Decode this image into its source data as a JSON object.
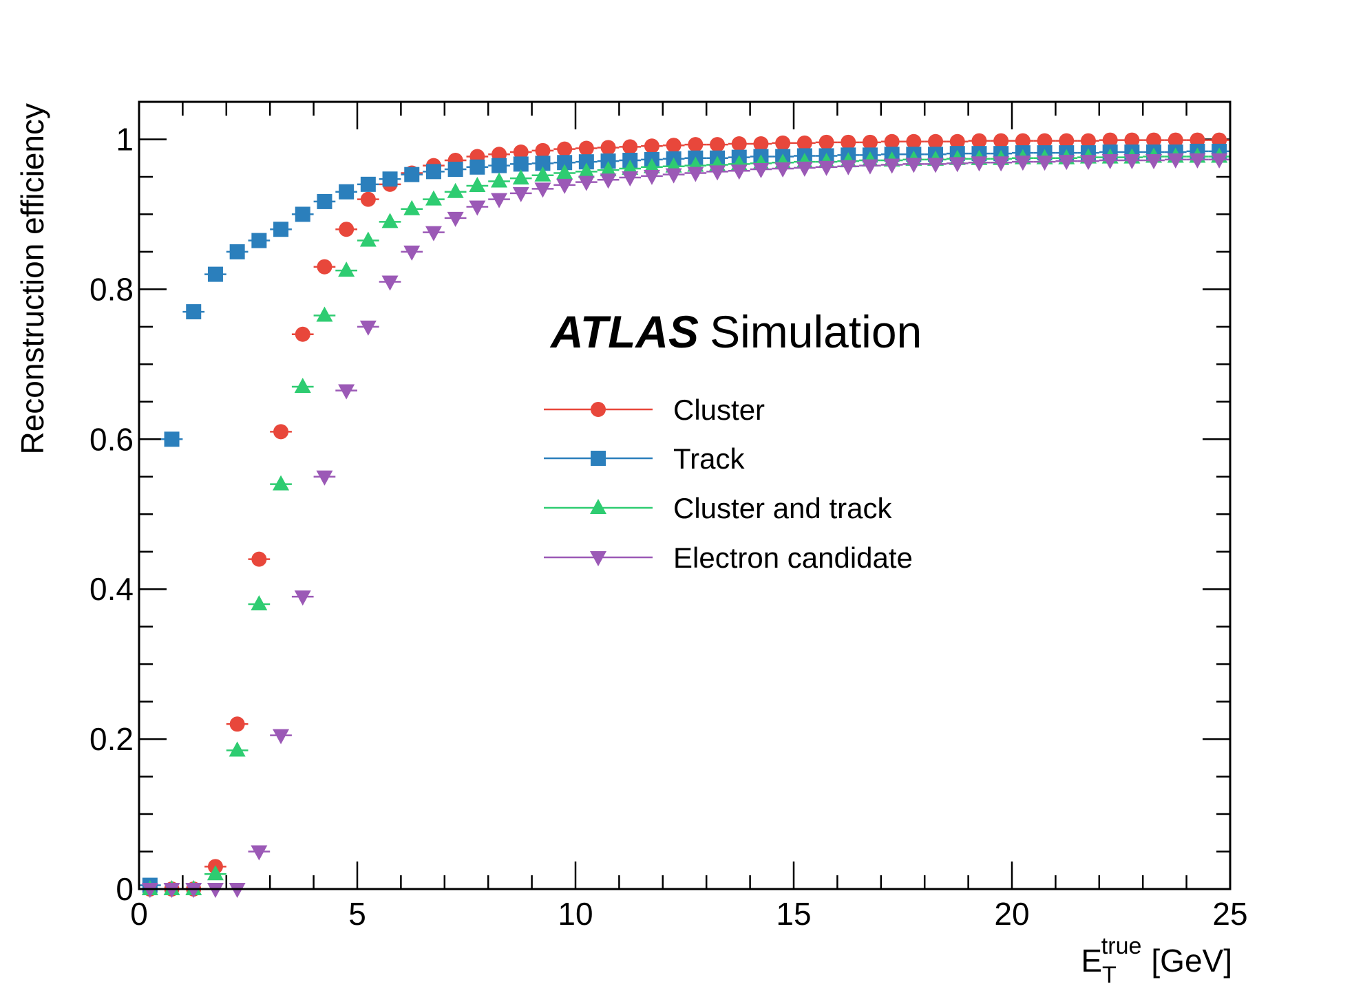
{
  "chart_data": {
    "type": "scatter",
    "xlabel": {
      "base": "E",
      "sub": "T",
      "sup": "true",
      "unit": "[GeV]"
    },
    "ylabel": "Reconstruction efficiency",
    "xlim": [
      0,
      25
    ],
    "ylim": [
      0,
      1.05
    ],
    "x_ticks": [
      0,
      5,
      10,
      15,
      20,
      25
    ],
    "y_ticks": [
      0,
      0.2,
      0.4,
      0.6,
      0.8,
      1
    ],
    "x_tick_labels": [
      "0",
      "5",
      "10",
      "15",
      "20",
      "25"
    ],
    "y_tick_labels": [
      "0",
      "0.2",
      "0.4",
      "0.6",
      "0.8",
      "1"
    ],
    "grid": false,
    "legend_position": "center",
    "annotation": {
      "bold": "ATLAS",
      "text": "Simulation"
    },
    "x": [
      0.25,
      0.75,
      1.25,
      1.75,
      2.25,
      2.75,
      3.25,
      3.75,
      4.25,
      4.75,
      5.25,
      5.75,
      6.25,
      6.75,
      7.25,
      7.75,
      8.25,
      8.75,
      9.25,
      9.75,
      10.25,
      10.75,
      11.25,
      11.75,
      12.25,
      12.75,
      13.25,
      13.75,
      14.25,
      14.75,
      15.25,
      15.75,
      16.25,
      16.75,
      17.25,
      17.75,
      18.25,
      18.75,
      19.25,
      19.75,
      20.25,
      20.75,
      21.25,
      21.75,
      22.25,
      22.75,
      23.25,
      23.75,
      24.25,
      24.75
    ],
    "series": [
      {
        "name": "Cluster",
        "color": "#e8473b",
        "marker": "circle",
        "values": [
          0.0,
          0.0,
          0.0,
          0.03,
          0.22,
          0.44,
          0.61,
          0.74,
          0.83,
          0.88,
          0.92,
          0.94,
          0.955,
          0.965,
          0.972,
          0.977,
          0.98,
          0.983,
          0.985,
          0.987,
          0.988,
          0.989,
          0.99,
          0.991,
          0.992,
          0.993,
          0.993,
          0.994,
          0.994,
          0.995,
          0.995,
          0.996,
          0.996,
          0.996,
          0.997,
          0.997,
          0.997,
          0.997,
          0.998,
          0.998,
          0.998,
          0.998,
          0.998,
          0.998,
          0.999,
          0.999,
          0.999,
          0.999,
          0.999,
          0.999
        ]
      },
      {
        "name": "Track",
        "color": "#2b7fbc",
        "marker": "square",
        "values": [
          0.005,
          0.6,
          0.77,
          0.82,
          0.85,
          0.865,
          0.88,
          0.9,
          0.917,
          0.93,
          0.94,
          0.947,
          0.953,
          0.957,
          0.96,
          0.963,
          0.965,
          0.967,
          0.968,
          0.969,
          0.97,
          0.971,
          0.972,
          0.973,
          0.974,
          0.975,
          0.975,
          0.976,
          0.977,
          0.977,
          0.978,
          0.978,
          0.979,
          0.979,
          0.98,
          0.98,
          0.98,
          0.981,
          0.981,
          0.981,
          0.982,
          0.982,
          0.982,
          0.982,
          0.983,
          0.983,
          0.983,
          0.983,
          0.984,
          0.984
        ]
      },
      {
        "name": "Cluster and track",
        "color": "#2ecc71",
        "marker": "triangle-up",
        "values": [
          0.0,
          0.0,
          0.0,
          0.02,
          0.185,
          0.38,
          0.54,
          0.67,
          0.765,
          0.825,
          0.865,
          0.89,
          0.907,
          0.92,
          0.93,
          0.938,
          0.944,
          0.948,
          0.952,
          0.955,
          0.957,
          0.959,
          0.961,
          0.963,
          0.964,
          0.965,
          0.966,
          0.967,
          0.968,
          0.969,
          0.97,
          0.97,
          0.971,
          0.972,
          0.972,
          0.973,
          0.973,
          0.974,
          0.974,
          0.974,
          0.975,
          0.975,
          0.975,
          0.976,
          0.976,
          0.976,
          0.977,
          0.977,
          0.977,
          0.977
        ]
      },
      {
        "name": "Electron candidate",
        "color": "#9b59b6",
        "marker": "triangle-down",
        "values": [
          0.0,
          0.0,
          0.0,
          0.0,
          0.0,
          0.05,
          0.205,
          0.39,
          0.55,
          0.665,
          0.75,
          0.81,
          0.85,
          0.876,
          0.895,
          0.91,
          0.92,
          0.928,
          0.934,
          0.939,
          0.943,
          0.946,
          0.949,
          0.951,
          0.953,
          0.955,
          0.957,
          0.958,
          0.96,
          0.961,
          0.962,
          0.963,
          0.964,
          0.965,
          0.966,
          0.967,
          0.967,
          0.968,
          0.969,
          0.969,
          0.97,
          0.97,
          0.971,
          0.971,
          0.972,
          0.972,
          0.972,
          0.973,
          0.973,
          0.973
        ]
      }
    ]
  }
}
